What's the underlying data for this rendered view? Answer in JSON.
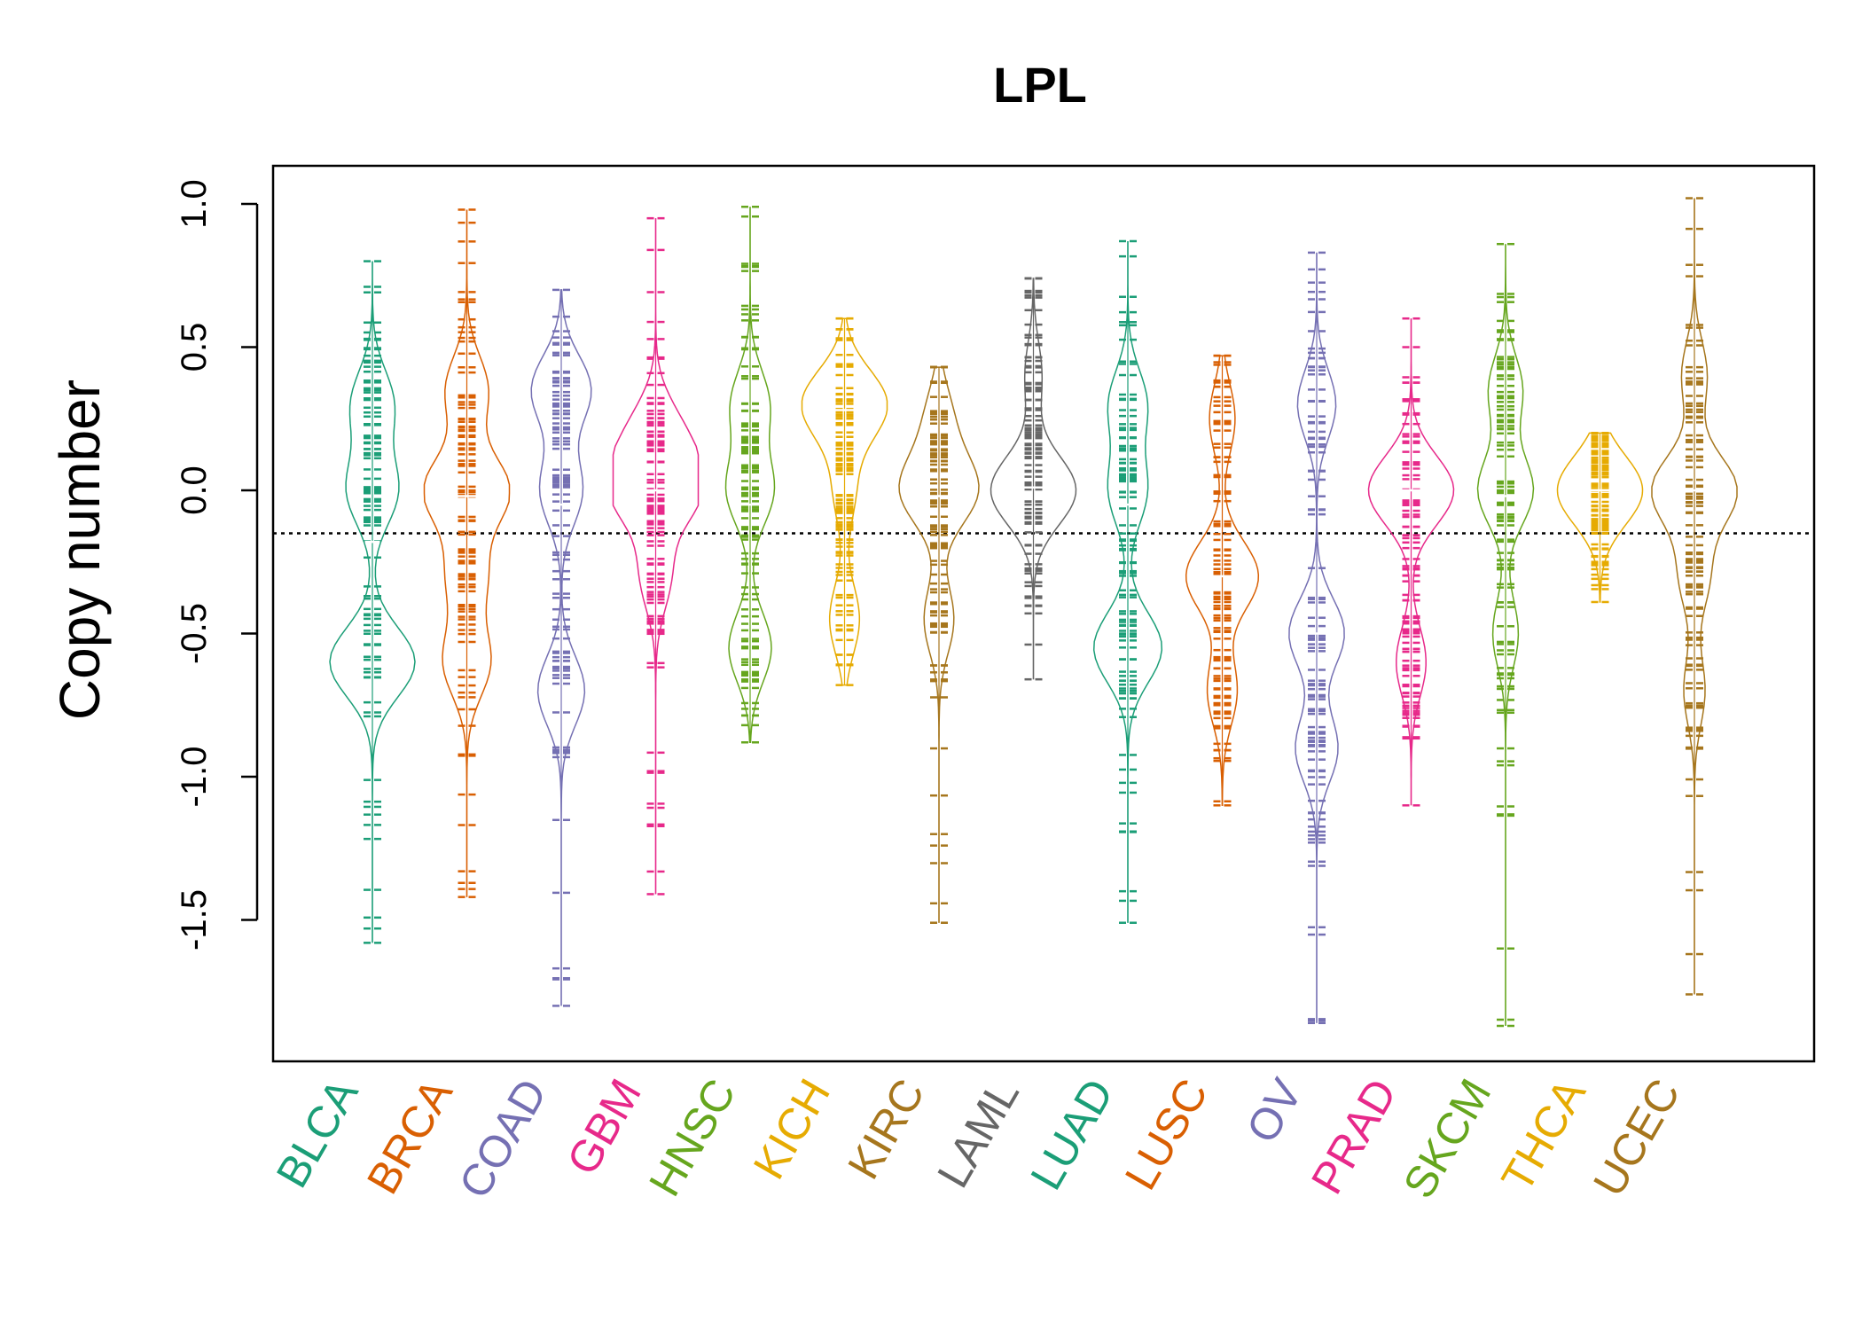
{
  "chart_data": {
    "type": "beanplot",
    "title": "LPL",
    "xlabel": "",
    "ylabel": "Copy number",
    "ylim": [
      -1.9,
      1.1
    ],
    "yticks": [
      1.0,
      0.5,
      0.0,
      -0.5,
      -1.0,
      -1.5
    ],
    "ytick_labels": [
      "1.0",
      "0.5",
      "0.0",
      "-0.5",
      "-1.0",
      "-1.5"
    ],
    "reference_line": -0.15,
    "categories": [
      "BLCA",
      "BRCA",
      "COAD",
      "GBM",
      "HNSC",
      "KICH",
      "KIRC",
      "LAML",
      "LUAD",
      "LUSC",
      "OV",
      "PRAD",
      "SKCM",
      "THCA",
      "UCEC"
    ],
    "colors": [
      "#1B9E77",
      "#D95F02",
      "#7570B3",
      "#E7298A",
      "#66A61E",
      "#E6AB02",
      "#A6761D",
      "#666666",
      "#1B9E77",
      "#D95F02",
      "#7570B3",
      "#E7298A",
      "#66A61E",
      "#E6AB02",
      "#A6761D"
    ],
    "series": [
      {
        "name": "BLCA",
        "min": -1.58,
        "max": 0.8,
        "median": -0.18,
        "modes": [
          [
            0.3,
            0.5
          ],
          [
            -0.6,
            1.0
          ],
          [
            0.0,
            0.6
          ]
        ]
      },
      {
        "name": "BRCA",
        "min": -1.42,
        "max": 0.98,
        "median": -0.02,
        "modes": [
          [
            0.0,
            1.0
          ],
          [
            0.35,
            0.5
          ],
          [
            -0.6,
            0.55
          ],
          [
            -0.3,
            0.45
          ]
        ]
      },
      {
        "name": "COAD",
        "min": -1.8,
        "max": 0.7,
        "median": -0.05,
        "modes": [
          [
            0.35,
            0.7
          ],
          [
            -0.7,
            0.55
          ],
          [
            0.0,
            0.5
          ]
        ]
      },
      {
        "name": "GBM",
        "min": -1.41,
        "max": 0.95,
        "median": 0.0,
        "modes": [
          [
            0.0,
            1.0
          ],
          [
            0.2,
            0.55
          ],
          [
            -0.3,
            0.35
          ]
        ]
      },
      {
        "name": "HNSC",
        "min": -0.88,
        "max": 0.99,
        "median": -0.05,
        "modes": [
          [
            0.3,
            0.45
          ],
          [
            -0.55,
            0.5
          ],
          [
            0.0,
            0.55
          ]
        ]
      },
      {
        "name": "KICH",
        "min": -0.68,
        "max": 0.6,
        "median": 0.28,
        "modes": [
          [
            0.3,
            1.0
          ],
          [
            -0.45,
            0.35
          ],
          [
            0.0,
            0.25
          ]
        ]
      },
      {
        "name": "KIRC",
        "min": -1.51,
        "max": 0.43,
        "median": -0.02,
        "modes": [
          [
            0.0,
            0.9
          ],
          [
            -0.45,
            0.35
          ],
          [
            0.25,
            0.3
          ]
        ]
      },
      {
        "name": "LAML",
        "min": -0.66,
        "max": 0.74,
        "median": 0.01,
        "modes": [
          [
            0.0,
            1.0
          ],
          [
            0.4,
            0.2
          ]
        ]
      },
      {
        "name": "LUAD",
        "min": -1.51,
        "max": 0.87,
        "median": -0.05,
        "modes": [
          [
            0.3,
            0.45
          ],
          [
            -0.55,
            0.8
          ],
          [
            0.0,
            0.45
          ]
        ]
      },
      {
        "name": "LUSC",
        "min": -1.1,
        "max": 0.47,
        "median": -0.3,
        "modes": [
          [
            -0.3,
            0.85
          ],
          [
            0.25,
            0.3
          ],
          [
            -0.7,
            0.35
          ]
        ]
      },
      {
        "name": "OV",
        "min": -1.86,
        "max": 0.83,
        "median": -0.5,
        "modes": [
          [
            -0.5,
            0.65
          ],
          [
            0.3,
            0.45
          ],
          [
            -0.9,
            0.5
          ]
        ]
      },
      {
        "name": "PRAD",
        "min": -1.1,
        "max": 0.6,
        "median": 0.0,
        "modes": [
          [
            0.0,
            1.0
          ],
          [
            -0.6,
            0.35
          ]
        ]
      },
      {
        "name": "SKCM",
        "min": -1.87,
        "max": 0.86,
        "median": -0.02,
        "modes": [
          [
            0.0,
            0.65
          ],
          [
            0.35,
            0.4
          ],
          [
            -0.5,
            0.3
          ]
        ]
      },
      {
        "name": "THCA",
        "min": -0.39,
        "max": 0.2,
        "median": 0.0,
        "modes": [
          [
            0.0,
            1.0
          ]
        ]
      },
      {
        "name": "UCEC",
        "min": -1.76,
        "max": 1.02,
        "median": 0.0,
        "modes": [
          [
            0.0,
            1.0
          ],
          [
            -0.3,
            0.35
          ],
          [
            0.4,
            0.3
          ],
          [
            -0.7,
            0.25
          ]
        ]
      }
    ]
  }
}
